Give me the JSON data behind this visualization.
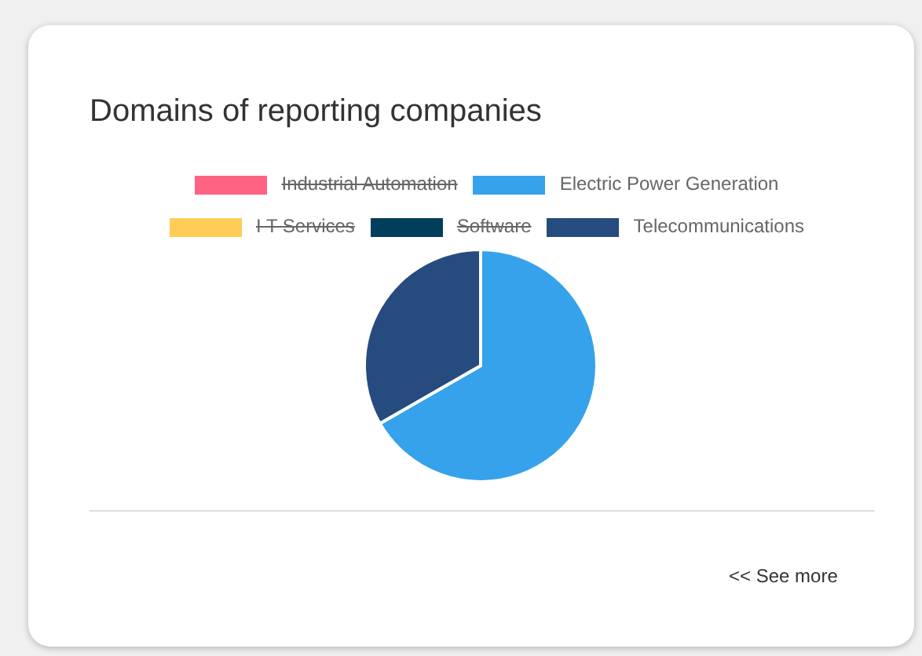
{
  "chart_data": {
    "type": "pie",
    "title": "Domains of reporting companies",
    "categories": [
      "Industrial Automation",
      "Electric Power Generation",
      "I T Services",
      "Software",
      "Telecommunications"
    ],
    "values": [
      null,
      66.7,
      null,
      null,
      33.3
    ],
    "colors": [
      "#ff6384",
      "#36a2eb",
      "#ffcd56",
      "#003f5c",
      "#264b7e"
    ],
    "legend": "top",
    "annotations": [
      "<< See more"
    ]
  }
}
